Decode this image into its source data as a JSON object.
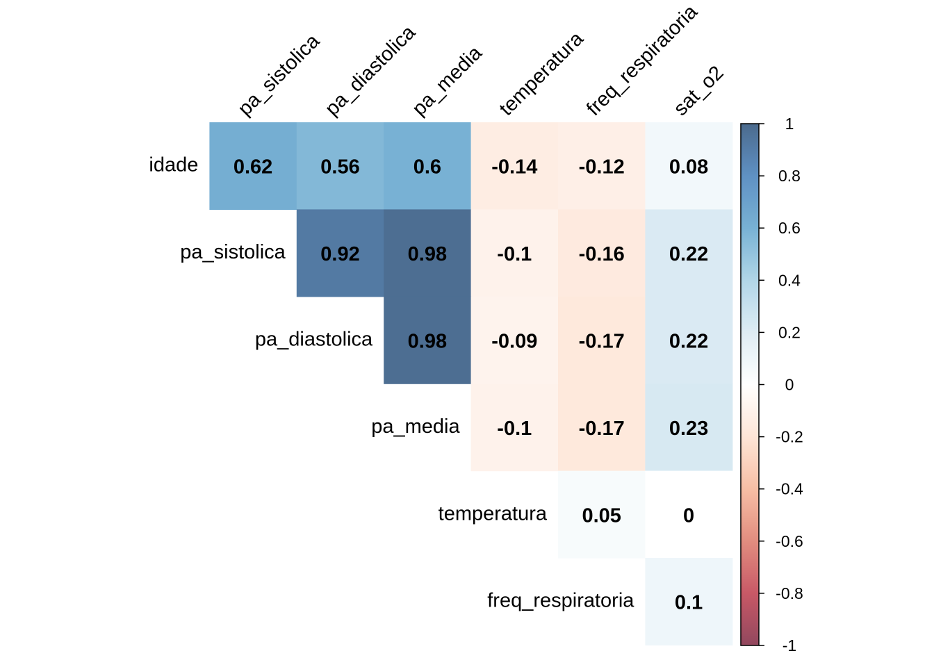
{
  "chart_data": {
    "type": "heatmap",
    "variables": [
      "idade",
      "pa_sistolica",
      "pa_diastolica",
      "pa_media",
      "temperatura",
      "freq_respiratoria",
      "sat_o2"
    ],
    "row_labels": [
      "idade",
      "pa_sistolica",
      "pa_diastolica",
      "pa_media",
      "temperatura",
      "freq_respiratoria"
    ],
    "col_labels": [
      "pa_sistolica",
      "pa_diastolica",
      "pa_media",
      "temperatura",
      "freq_respiratoria",
      "sat_o2"
    ],
    "layout": "upper-triangle",
    "cells": [
      {
        "row": "idade",
        "col": "pa_sistolica",
        "value": 0.62,
        "label": "0.62"
      },
      {
        "row": "idade",
        "col": "pa_diastolica",
        "value": 0.56,
        "label": "0.56"
      },
      {
        "row": "idade",
        "col": "pa_media",
        "value": 0.6,
        "label": "0.6"
      },
      {
        "row": "idade",
        "col": "temperatura",
        "value": -0.14,
        "label": "-0.14"
      },
      {
        "row": "idade",
        "col": "freq_respiratoria",
        "value": -0.12,
        "label": "-0.12"
      },
      {
        "row": "idade",
        "col": "sat_o2",
        "value": 0.08,
        "label": "0.08"
      },
      {
        "row": "pa_sistolica",
        "col": "pa_diastolica",
        "value": 0.92,
        "label": "0.92"
      },
      {
        "row": "pa_sistolica",
        "col": "pa_media",
        "value": 0.98,
        "label": "0.98"
      },
      {
        "row": "pa_sistolica",
        "col": "temperatura",
        "value": -0.1,
        "label": "-0.1"
      },
      {
        "row": "pa_sistolica",
        "col": "freq_respiratoria",
        "value": -0.16,
        "label": "-0.16"
      },
      {
        "row": "pa_sistolica",
        "col": "sat_o2",
        "value": 0.22,
        "label": "0.22"
      },
      {
        "row": "pa_diastolica",
        "col": "pa_media",
        "value": 0.98,
        "label": "0.98"
      },
      {
        "row": "pa_diastolica",
        "col": "temperatura",
        "value": -0.09,
        "label": "-0.09"
      },
      {
        "row": "pa_diastolica",
        "col": "freq_respiratoria",
        "value": -0.17,
        "label": "-0.17"
      },
      {
        "row": "pa_diastolica",
        "col": "sat_o2",
        "value": 0.22,
        "label": "0.22"
      },
      {
        "row": "pa_media",
        "col": "temperatura",
        "value": -0.1,
        "label": "-0.1"
      },
      {
        "row": "pa_media",
        "col": "freq_respiratoria",
        "value": -0.17,
        "label": "-0.17"
      },
      {
        "row": "pa_media",
        "col": "sat_o2",
        "value": 0.23,
        "label": "0.23"
      },
      {
        "row": "temperatura",
        "col": "freq_respiratoria",
        "value": 0.05,
        "label": "0.05"
      },
      {
        "row": "temperatura",
        "col": "sat_o2",
        "value": 0,
        "label": "0"
      },
      {
        "row": "freq_respiratoria",
        "col": "sat_o2",
        "value": 0.1,
        "label": "0.1"
      }
    ],
    "colorbar": {
      "range": [
        -1,
        1
      ],
      "ticks": [
        1,
        0.8,
        0.6,
        0.4,
        0.2,
        0,
        -0.2,
        -0.4,
        -0.6,
        -0.8,
        -1
      ],
      "tick_labels": [
        "1",
        "0.8",
        "0.6",
        "0.4",
        "0.2",
        "0",
        "-0.2",
        "-0.4",
        "-0.6",
        "-0.8",
        "-1"
      ],
      "placement": "right",
      "palette": [
        "#67001F",
        "#B2182B",
        "#D6604D",
        "#F4A582",
        "#FDDBC7",
        "#FFFFFF",
        "#D1E5F0",
        "#92C5DE",
        "#4393C3",
        "#2166AC",
        "#053061"
      ]
    },
    "grid": false
  }
}
